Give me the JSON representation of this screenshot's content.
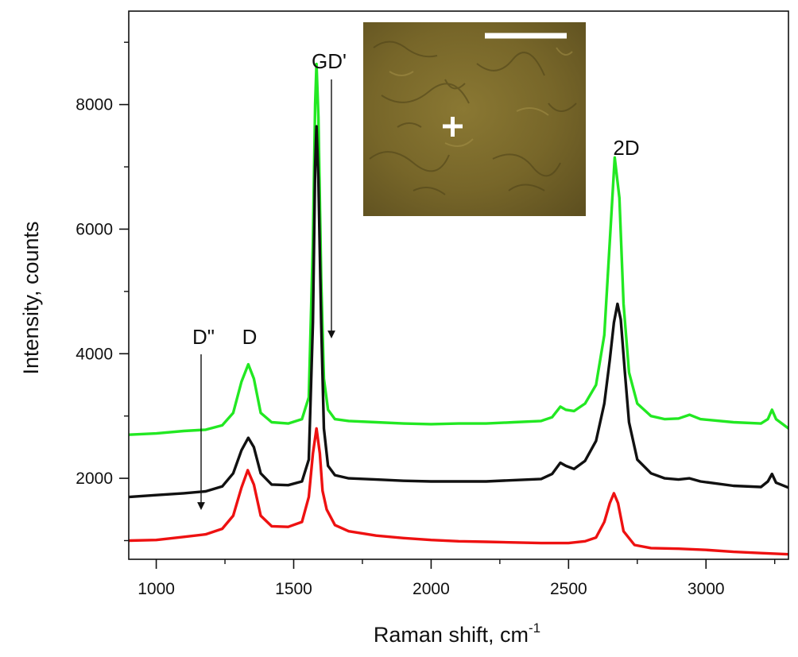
{
  "chart_data": {
    "type": "line",
    "title": "",
    "xlabel": "Raman shift, cm",
    "xlabel_superscript": "-1",
    "ylabel": "Intensity, counts",
    "xlim": [
      900,
      3300
    ],
    "ylim": [
      700,
      9500
    ],
    "xticks": [
      1000,
      1500,
      2000,
      2500,
      3000
    ],
    "yticks": [
      2000,
      4000,
      6000,
      8000
    ],
    "grid": false,
    "legend": "none",
    "series": [
      {
        "color": "#22e822",
        "points": [
          [
            900,
            2700
          ],
          [
            1000,
            2720
          ],
          [
            1100,
            2760
          ],
          [
            1180,
            2780
          ],
          [
            1240,
            2850
          ],
          [
            1280,
            3050
          ],
          [
            1310,
            3550
          ],
          [
            1335,
            3830
          ],
          [
            1355,
            3600
          ],
          [
            1380,
            3050
          ],
          [
            1420,
            2900
          ],
          [
            1480,
            2880
          ],
          [
            1530,
            2950
          ],
          [
            1555,
            3300
          ],
          [
            1570,
            5800
          ],
          [
            1578,
            8000
          ],
          [
            1583,
            8650
          ],
          [
            1590,
            7800
          ],
          [
            1600,
            5200
          ],
          [
            1610,
            3600
          ],
          [
            1625,
            3100
          ],
          [
            1650,
            2950
          ],
          [
            1700,
            2920
          ],
          [
            1800,
            2900
          ],
          [
            1900,
            2880
          ],
          [
            2000,
            2870
          ],
          [
            2100,
            2880
          ],
          [
            2200,
            2880
          ],
          [
            2300,
            2900
          ],
          [
            2400,
            2920
          ],
          [
            2440,
            2980
          ],
          [
            2470,
            3150
          ],
          [
            2490,
            3100
          ],
          [
            2520,
            3080
          ],
          [
            2560,
            3200
          ],
          [
            2600,
            3500
          ],
          [
            2630,
            4300
          ],
          [
            2650,
            5800
          ],
          [
            2668,
            7150
          ],
          [
            2685,
            6500
          ],
          [
            2700,
            4800
          ],
          [
            2720,
            3700
          ],
          [
            2750,
            3200
          ],
          [
            2800,
            3000
          ],
          [
            2850,
            2950
          ],
          [
            2900,
            2960
          ],
          [
            2940,
            3020
          ],
          [
            2980,
            2950
          ],
          [
            3100,
            2900
          ],
          [
            3200,
            2880
          ],
          [
            3225,
            2950
          ],
          [
            3240,
            3100
          ],
          [
            3255,
            2950
          ],
          [
            3300,
            2800
          ]
        ]
      },
      {
        "color": "#111111",
        "points": [
          [
            900,
            1700
          ],
          [
            1000,
            1730
          ],
          [
            1100,
            1760
          ],
          [
            1180,
            1790
          ],
          [
            1240,
            1870
          ],
          [
            1280,
            2080
          ],
          [
            1310,
            2450
          ],
          [
            1335,
            2650
          ],
          [
            1355,
            2500
          ],
          [
            1380,
            2080
          ],
          [
            1420,
            1900
          ],
          [
            1480,
            1890
          ],
          [
            1530,
            1950
          ],
          [
            1555,
            2300
          ],
          [
            1570,
            4500
          ],
          [
            1578,
            7000
          ],
          [
            1583,
            7650
          ],
          [
            1590,
            6800
          ],
          [
            1600,
            4500
          ],
          [
            1610,
            2800
          ],
          [
            1625,
            2200
          ],
          [
            1650,
            2050
          ],
          [
            1700,
            2000
          ],
          [
            1800,
            1980
          ],
          [
            1900,
            1960
          ],
          [
            2000,
            1950
          ],
          [
            2100,
            1950
          ],
          [
            2200,
            1950
          ],
          [
            2300,
            1970
          ],
          [
            2400,
            1990
          ],
          [
            2440,
            2070
          ],
          [
            2470,
            2250
          ],
          [
            2490,
            2200
          ],
          [
            2520,
            2150
          ],
          [
            2560,
            2280
          ],
          [
            2600,
            2600
          ],
          [
            2630,
            3200
          ],
          [
            2650,
            3900
          ],
          [
            2665,
            4500
          ],
          [
            2678,
            4800
          ],
          [
            2690,
            4550
          ],
          [
            2705,
            3700
          ],
          [
            2720,
            2900
          ],
          [
            2750,
            2300
          ],
          [
            2800,
            2080
          ],
          [
            2850,
            2000
          ],
          [
            2900,
            1980
          ],
          [
            2940,
            2000
          ],
          [
            2980,
            1950
          ],
          [
            3100,
            1880
          ],
          [
            3200,
            1860
          ],
          [
            3225,
            1950
          ],
          [
            3240,
            2070
          ],
          [
            3255,
            1930
          ],
          [
            3300,
            1850
          ]
        ]
      },
      {
        "color": "#ee1111",
        "points": [
          [
            900,
            1000
          ],
          [
            1000,
            1010
          ],
          [
            1100,
            1060
          ],
          [
            1180,
            1100
          ],
          [
            1240,
            1190
          ],
          [
            1280,
            1400
          ],
          [
            1310,
            1850
          ],
          [
            1333,
            2130
          ],
          [
            1355,
            1900
          ],
          [
            1380,
            1400
          ],
          [
            1420,
            1230
          ],
          [
            1480,
            1220
          ],
          [
            1530,
            1300
          ],
          [
            1555,
            1700
          ],
          [
            1570,
            2400
          ],
          [
            1583,
            2800
          ],
          [
            1595,
            2400
          ],
          [
            1605,
            1800
          ],
          [
            1620,
            1500
          ],
          [
            1650,
            1250
          ],
          [
            1700,
            1150
          ],
          [
            1800,
            1080
          ],
          [
            1900,
            1040
          ],
          [
            2000,
            1010
          ],
          [
            2100,
            990
          ],
          [
            2200,
            980
          ],
          [
            2300,
            970
          ],
          [
            2400,
            960
          ],
          [
            2500,
            960
          ],
          [
            2560,
            990
          ],
          [
            2600,
            1050
          ],
          [
            2630,
            1300
          ],
          [
            2650,
            1600
          ],
          [
            2665,
            1760
          ],
          [
            2680,
            1600
          ],
          [
            2700,
            1150
          ],
          [
            2740,
            930
          ],
          [
            2800,
            880
          ],
          [
            2900,
            870
          ],
          [
            3000,
            850
          ],
          [
            3100,
            820
          ],
          [
            3200,
            800
          ],
          [
            3300,
            780
          ]
        ]
      }
    ],
    "annotations": {
      "d_double_prime": "D\"",
      "d": "D",
      "gd_prime": "GD'",
      "two_d": "2D"
    }
  },
  "inset": {
    "background": "#7a6a2c",
    "marker_color": "#ffffff"
  }
}
